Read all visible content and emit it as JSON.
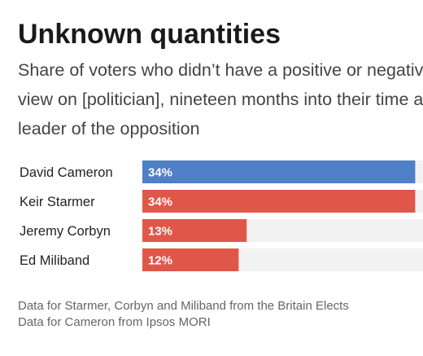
{
  "header": {
    "title": "Unknown quantities",
    "subtitle": "Share of voters who didn’t have a positive or negative view on [politician], nineteen months into their time as leader of the opposition"
  },
  "chart_data": {
    "type": "bar",
    "orientation": "horizontal",
    "categories": [
      "David Cameron",
      "Keir Starmer",
      "Jeremy Corbyn",
      "Ed Miliband"
    ],
    "values": [
      34,
      34,
      13,
      12
    ],
    "value_labels": [
      "34%",
      "34%",
      "13%",
      "12%"
    ],
    "bar_colors": [
      "#4f7fc6",
      "#e0574a",
      "#e0574a",
      "#e0574a"
    ],
    "track_color": "#f2f2f2",
    "xlim": [
      0,
      37
    ],
    "title": "Unknown quantities",
    "xlabel": "",
    "ylabel": "",
    "grid": false
  },
  "notes": [
    "Data for Starmer, Corbyn and Miliband from the Britain Elects",
    "Data for Cameron from Ipsos MORI"
  ]
}
